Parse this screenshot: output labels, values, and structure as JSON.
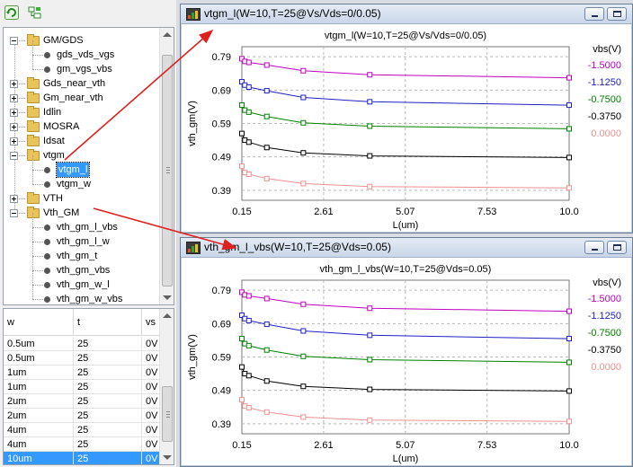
{
  "toolbar": {
    "buttons": [
      {
        "icon": "refresh-icon"
      },
      {
        "icon": "collapse-tree-icon"
      }
    ]
  },
  "tree": {
    "items": [
      {
        "label": "GM/GDS",
        "type": "folder",
        "level": 0,
        "expanded": true
      },
      {
        "label": "gds_vds_vgs",
        "type": "leaf",
        "level": 1
      },
      {
        "label": "gm_vgs_vbs",
        "type": "leaf",
        "level": 1
      },
      {
        "label": "Gds_near_vth",
        "type": "folder",
        "level": 0,
        "expanded": false
      },
      {
        "label": "Gm_near_vth",
        "type": "folder",
        "level": 0,
        "expanded": false
      },
      {
        "label": "Idlin",
        "type": "folder",
        "level": 0,
        "expanded": false
      },
      {
        "label": "MOSRA",
        "type": "folder",
        "level": 0,
        "expanded": false
      },
      {
        "label": "Idsat",
        "type": "folder",
        "level": 0,
        "expanded": false
      },
      {
        "label": "vtgm",
        "type": "folder",
        "level": 0,
        "expanded": true
      },
      {
        "label": "vtgm_l",
        "type": "leaf",
        "level": 1,
        "selected": true
      },
      {
        "label": "vtgm_w",
        "type": "leaf",
        "level": 1
      },
      {
        "label": "VTH",
        "type": "folder",
        "level": 0,
        "expanded": false
      },
      {
        "label": "Vth_GM",
        "type": "folder",
        "level": 0,
        "expanded": true
      },
      {
        "label": "vth_gm_l_vbs",
        "type": "leaf",
        "level": 1
      },
      {
        "label": "vth_gm_l_w",
        "type": "leaf",
        "level": 1
      },
      {
        "label": "vth_gm_t",
        "type": "leaf",
        "level": 1
      },
      {
        "label": "vth_gm_vbs",
        "type": "leaf",
        "level": 1
      },
      {
        "label": "vth_gm_w_l",
        "type": "leaf",
        "level": 1
      },
      {
        "label": "vth_gm_w_vbs",
        "type": "leaf",
        "level": 1
      }
    ]
  },
  "table": {
    "headers": [
      "w",
      "t",
      "vs"
    ],
    "rows": [
      [
        "0.5um",
        "25",
        "0V"
      ],
      [
        "0.5um",
        "25",
        "0V"
      ],
      [
        "1um",
        "25",
        "0V"
      ],
      [
        "1um",
        "25",
        "0V"
      ],
      [
        "2um",
        "25",
        "0V"
      ],
      [
        "2um",
        "25",
        "0V"
      ],
      [
        "4um",
        "25",
        "0V"
      ],
      [
        "4um",
        "25",
        "0V"
      ],
      [
        "10um",
        "25",
        "0V"
      ]
    ],
    "selected_row": 8
  },
  "windows": [
    {
      "title": "vtgm_l(W=10,T=25@Vs/Vds=0/0.05)"
    },
    {
      "title": "vth_gm_l_vbs(W=10,T=25@Vds=0.05)"
    }
  ],
  "chart_data": [
    {
      "type": "line",
      "title": "vtgm_l(W=10,T=25@Vs/Vds=0/0.05)",
      "xlabel": "L(um)",
      "ylabel": "vth_gm(V)",
      "xlim": [
        0.15,
        10.0
      ],
      "ylim": [
        0.36,
        0.82
      ],
      "xticks": [
        0.15,
        2.61,
        5.07,
        7.53,
        10.0
      ],
      "xtick_labels": [
        "0.15",
        "2.61",
        "5.07",
        "7.53",
        "10.0"
      ],
      "yticks": [
        0.39,
        0.49,
        0.59,
        0.69,
        0.79
      ],
      "ytick_labels": [
        "0.39",
        "0.49",
        "0.59",
        "0.69",
        "0.79"
      ],
      "grid": true,
      "legend_title": "vbs(V)",
      "legend_position": "right",
      "x": [
        0.15,
        0.24,
        0.36,
        0.9,
        2.0,
        4.0,
        10.0
      ],
      "series": [
        {
          "name": "-1.5000",
          "color": "#c000c0",
          "values": [
            0.784,
            0.776,
            0.773,
            0.765,
            0.748,
            0.736,
            0.727
          ]
        },
        {
          "name": "-1.1250",
          "color": "#2020c8",
          "values": [
            0.715,
            0.705,
            0.699,
            0.688,
            0.668,
            0.655,
            0.645
          ]
        },
        {
          "name": "-0.7500",
          "color": "#008000",
          "values": [
            0.645,
            0.63,
            0.624,
            0.611,
            0.592,
            0.582,
            0.574
          ]
        },
        {
          "name": "-0.3750",
          "color": "#000000",
          "values": [
            0.56,
            0.54,
            0.534,
            0.518,
            0.502,
            0.493,
            0.488
          ]
        },
        {
          "name": "0.0000",
          "color": "#f09090",
          "values": [
            0.462,
            0.443,
            0.438,
            0.425,
            0.41,
            0.401,
            0.397
          ]
        }
      ]
    },
    {
      "type": "line",
      "title": "vth_gm_l_vbs(W=10,T=25@Vds=0.05)",
      "xlabel": "L(um)",
      "ylabel": "vth_gm(V)",
      "xlim": [
        0.15,
        10.0
      ],
      "ylim": [
        0.36,
        0.82
      ],
      "xticks": [
        0.15,
        2.61,
        5.07,
        7.53,
        10.0
      ],
      "xtick_labels": [
        "0.15",
        "2.61",
        "5.07",
        "7.53",
        "10.0"
      ],
      "yticks": [
        0.39,
        0.49,
        0.59,
        0.69,
        0.79
      ],
      "ytick_labels": [
        "0.39",
        "0.49",
        "0.59",
        "0.69",
        "0.79"
      ],
      "grid": true,
      "legend_title": "vbs(V)",
      "legend_position": "right",
      "x": [
        0.15,
        0.24,
        0.36,
        0.9,
        2.0,
        4.0,
        10.0
      ],
      "series": [
        {
          "name": "-1.5000",
          "color": "#c000c0",
          "values": [
            0.784,
            0.776,
            0.773,
            0.765,
            0.748,
            0.736,
            0.727
          ]
        },
        {
          "name": "-1.1250",
          "color": "#2020c8",
          "values": [
            0.715,
            0.705,
            0.699,
            0.688,
            0.668,
            0.655,
            0.645
          ]
        },
        {
          "name": "-0.7500",
          "color": "#008000",
          "values": [
            0.645,
            0.63,
            0.624,
            0.611,
            0.592,
            0.582,
            0.574
          ]
        },
        {
          "name": "-0.3750",
          "color": "#000000",
          "values": [
            0.56,
            0.54,
            0.534,
            0.518,
            0.502,
            0.493,
            0.488
          ]
        },
        {
          "name": "0.0000",
          "color": "#f09090",
          "values": [
            0.462,
            0.443,
            0.438,
            0.425,
            0.41,
            0.401,
            0.397
          ]
        }
      ]
    }
  ]
}
